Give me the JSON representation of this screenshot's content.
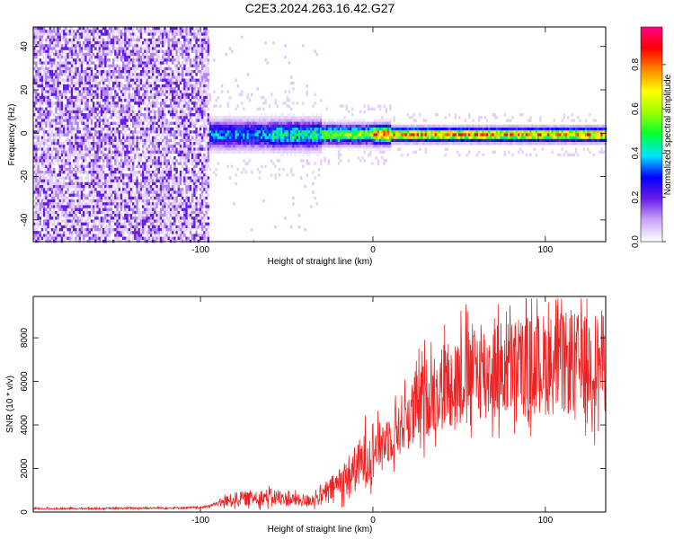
{
  "title": "C2E3.2024.263.16.42.G27",
  "chart_data": [
    {
      "type": "heatmap",
      "xlabel": "Height of straight line (km)",
      "ylabel": "Frequency (Hz)",
      "xlim": [
        -197,
        135
      ],
      "ylim": [
        -50,
        49
      ],
      "x_ticks": [
        -100,
        0,
        100
      ],
      "x_tick_labels": [
        "-100",
        "0",
        "100"
      ],
      "y_ticks": [
        -40,
        -20,
        0,
        20,
        40
      ],
      "y_tick_labels": [
        "-40",
        "-20",
        "0",
        "20",
        "40"
      ],
      "noise_region_x": [
        -197,
        -95
      ],
      "signal_center_freq": 0,
      "colorbar": {
        "label": "Normalized spectral amplitude",
        "range": [
          0,
          0.97
        ],
        "ticks": [
          0,
          0.2,
          0.4,
          0.6,
          0.8
        ],
        "tick_labels": [
          "0.0",
          "0.2",
          "0.4",
          "0.6",
          "0.8"
        ],
        "colors": [
          "#ffffff",
          "#c9a6f6",
          "#6a1ce6",
          "#0000ff",
          "#00e5ff",
          "#00ff33",
          "#9aff00",
          "#ffff00",
          "#ff8800",
          "#ff0000",
          "#ff0088"
        ]
      }
    },
    {
      "type": "line",
      "xlabel": "Height of straight line (km)",
      "ylabel": "SNR (10 * v/v)",
      "xlim": [
        -197,
        135
      ],
      "ylim": [
        0,
        9900
      ],
      "x_ticks": [
        -100,
        0,
        100
      ],
      "x_tick_labels": [
        "-100",
        "0",
        "100"
      ],
      "y_ticks": [
        0,
        2000,
        4000,
        6000,
        8000
      ],
      "y_tick_labels": [
        "0",
        "2000",
        "4000",
        "6000",
        "8000"
      ],
      "color": "#ee2222",
      "envelope": {
        "x": [
          -197,
          -150,
          -100,
          -90,
          -80,
          -60,
          -40,
          -30,
          -20,
          -10,
          0,
          10,
          20,
          30,
          40,
          50,
          60,
          70,
          80,
          90,
          100,
          110,
          120,
          135
        ],
        "y": [
          150,
          170,
          200,
          380,
          600,
          700,
          500,
          700,
          1300,
          2000,
          2800,
          3500,
          4300,
          5200,
          5800,
          6200,
          6500,
          6500,
          6600,
          6700,
          6800,
          6800,
          6800,
          6900
        ]
      }
    }
  ]
}
